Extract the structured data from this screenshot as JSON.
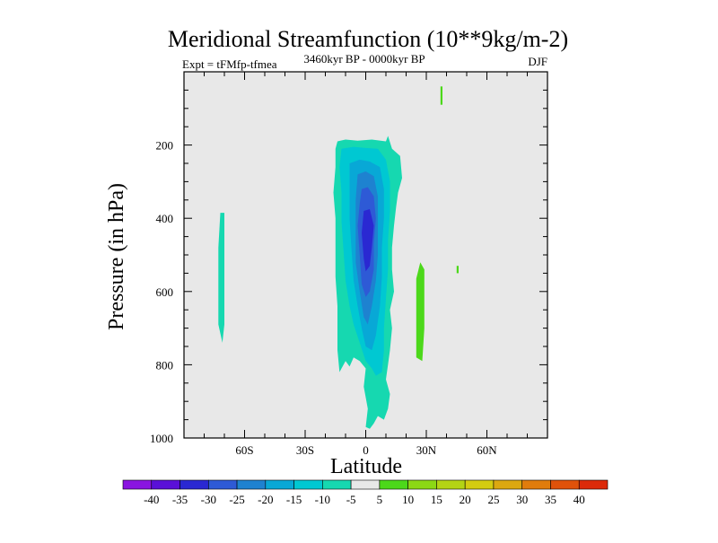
{
  "chart_data": {
    "type": "heatmap",
    "title": "Meridional Streamfunction (10**9kg/m-2)",
    "subtitle_left": "Expt = tFMfp-tfmea",
    "subtitle_center": "3460kyr BP - 0000kyr BP",
    "subtitle_right": "DJF",
    "xlabel": "Latitude",
    "ylabel": "Pressure (in hPa)",
    "xlim": [
      -90,
      90
    ],
    "ylim": [
      0,
      1000
    ],
    "y_inverted": true,
    "xticks": [
      {
        "value": -60,
        "label": "60S"
      },
      {
        "value": -30,
        "label": "30S"
      },
      {
        "value": 0,
        "label": "0"
      },
      {
        "value": 30,
        "label": "30N"
      },
      {
        "value": 60,
        "label": "60N"
      }
    ],
    "yticks": [
      {
        "value": 200,
        "label": "200"
      },
      {
        "value": 400,
        "label": "400"
      },
      {
        "value": 600,
        "label": "600"
      },
      {
        "value": 800,
        "label": "800"
      },
      {
        "value": 1000,
        "label": "1000"
      }
    ],
    "colorbar_levels": [
      "-40",
      "-35",
      "-30",
      "-25",
      "-20",
      "-15",
      "-10",
      "-5",
      "5",
      "10",
      "15",
      "20",
      "25",
      "30",
      "35",
      "40"
    ],
    "colorbar_colors": [
      "#8a14e0",
      "#5a10d8",
      "#2a28d2",
      "#2e5ad6",
      "#1e82d0",
      "#08a8d6",
      "#00c8d2",
      "#16d8b0",
      "#e8e8e8",
      "#4cd81a",
      "#8cd814",
      "#b4d414",
      "#d4cc10",
      "#dca810",
      "#e07c0c",
      "#e0520a",
      "#dc2a0a"
    ],
    "background_color": "#e8e8e8",
    "contour_regions": [
      {
        "name": "main-cell-10",
        "value": -10,
        "points": [
          [
            -14,
            190
          ],
          [
            -10,
            185
          ],
          [
            -4,
            188
          ],
          [
            3,
            185
          ],
          [
            10,
            190
          ],
          [
            11,
            175
          ],
          [
            13,
            210
          ],
          [
            17,
            230
          ],
          [
            18,
            290
          ],
          [
            16,
            330
          ],
          [
            15,
            370
          ],
          [
            14,
            420
          ],
          [
            13,
            480
          ],
          [
            13,
            540
          ],
          [
            14,
            600
          ],
          [
            12,
            650
          ],
          [
            13,
            700
          ],
          [
            12,
            760
          ],
          [
            11,
            800
          ],
          [
            10,
            840
          ],
          [
            12,
            880
          ],
          [
            11,
            920
          ],
          [
            9,
            950
          ],
          [
            6,
            940
          ],
          [
            4,
            960
          ],
          [
            2,
            975
          ],
          [
            0,
            970
          ],
          [
            1,
            920
          ],
          [
            -1,
            860
          ],
          [
            0,
            810
          ],
          [
            -3,
            790
          ],
          [
            -6,
            780
          ],
          [
            -8,
            805
          ],
          [
            -10,
            790
          ],
          [
            -12,
            810
          ],
          [
            -13,
            820
          ],
          [
            -14,
            760
          ],
          [
            -14,
            700
          ],
          [
            -14,
            640
          ],
          [
            -15,
            560
          ],
          [
            -15,
            470
          ],
          [
            -15,
            400
          ],
          [
            -16,
            330
          ],
          [
            -15,
            260
          ],
          [
            -15,
            210
          ]
        ]
      },
      {
        "name": "main-cell-15",
        "value": -15,
        "points": [
          [
            -12,
            210
          ],
          [
            -6,
            205
          ],
          [
            0,
            208
          ],
          [
            6,
            210
          ],
          [
            10,
            240
          ],
          [
            12,
            300
          ],
          [
            12,
            380
          ],
          [
            11,
            460
          ],
          [
            11,
            540
          ],
          [
            10,
            620
          ],
          [
            9,
            700
          ],
          [
            9,
            760
          ],
          [
            8,
            820
          ],
          [
            5,
            830
          ],
          [
            3,
            810
          ],
          [
            0,
            790
          ],
          [
            -3,
            740
          ],
          [
            -6,
            690
          ],
          [
            -8,
            640
          ],
          [
            -10,
            570
          ],
          [
            -11,
            490
          ],
          [
            -12,
            410
          ],
          [
            -12,
            330
          ],
          [
            -13,
            260
          ]
        ]
      },
      {
        "name": "main-cell-20",
        "value": -20,
        "points": [
          [
            -8,
            250
          ],
          [
            -3,
            240
          ],
          [
            2,
            245
          ],
          [
            7,
            260
          ],
          [
            9,
            320
          ],
          [
            9,
            400
          ],
          [
            8,
            480
          ],
          [
            8,
            560
          ],
          [
            7,
            640
          ],
          [
            5,
            720
          ],
          [
            3,
            760
          ],
          [
            0,
            750
          ],
          [
            -2,
            700
          ],
          [
            -4,
            640
          ],
          [
            -6,
            570
          ],
          [
            -7,
            490
          ],
          [
            -8,
            400
          ],
          [
            -8,
            320
          ]
        ]
      },
      {
        "name": "main-cell-25",
        "value": -25,
        "points": [
          [
            -4,
            280
          ],
          [
            0,
            272
          ],
          [
            4,
            285
          ],
          [
            6,
            340
          ],
          [
            6,
            420
          ],
          [
            6,
            500
          ],
          [
            5,
            570
          ],
          [
            3,
            640
          ],
          [
            1,
            690
          ],
          [
            -1,
            670
          ],
          [
            -3,
            600
          ],
          [
            -5,
            520
          ],
          [
            -5,
            440
          ],
          [
            -5,
            350
          ]
        ]
      },
      {
        "name": "main-cell-30",
        "value": -30,
        "points": [
          [
            -2,
            320
          ],
          [
            1,
            315
          ],
          [
            4,
            340
          ],
          [
            5,
            400
          ],
          [
            4,
            470
          ],
          [
            4,
            540
          ],
          [
            2,
            600
          ],
          [
            0,
            615
          ],
          [
            -2,
            580
          ],
          [
            -3,
            500
          ],
          [
            -4,
            420
          ],
          [
            -3,
            360
          ]
        ]
      },
      {
        "name": "main-cell-35",
        "value": -35,
        "points": [
          [
            -1,
            380
          ],
          [
            2,
            375
          ],
          [
            4,
            420
          ],
          [
            3,
            480
          ],
          [
            2,
            530
          ],
          [
            0,
            545
          ],
          [
            -1,
            510
          ],
          [
            -2,
            440
          ]
        ]
      },
      {
        "name": "left-strip-10",
        "value": -10,
        "points": [
          [
            -72,
            385
          ],
          [
            -70,
            385
          ],
          [
            -70,
            480
          ],
          [
            -70,
            580
          ],
          [
            -70,
            690
          ],
          [
            -71,
            740
          ],
          [
            -73,
            690
          ],
          [
            -73,
            580
          ],
          [
            -73,
            480
          ]
        ]
      },
      {
        "name": "right-strip-5",
        "value": 5,
        "points": [
          [
            25,
            565
          ],
          [
            27,
            520
          ],
          [
            29,
            540
          ],
          [
            29,
            620
          ],
          [
            29,
            700
          ],
          [
            28,
            790
          ],
          [
            25,
            780
          ],
          [
            25,
            700
          ]
        ]
      },
      {
        "name": "top-sliver-5",
        "value": 5,
        "points": [
          [
            37,
            40
          ],
          [
            38,
            40
          ],
          [
            38,
            90
          ],
          [
            37,
            90
          ]
        ]
      },
      {
        "name": "small-sliver-5",
        "value": 5,
        "points": [
          [
            45,
            530
          ],
          [
            46,
            530
          ],
          [
            46,
            550
          ],
          [
            45,
            550
          ]
        ]
      }
    ]
  }
}
